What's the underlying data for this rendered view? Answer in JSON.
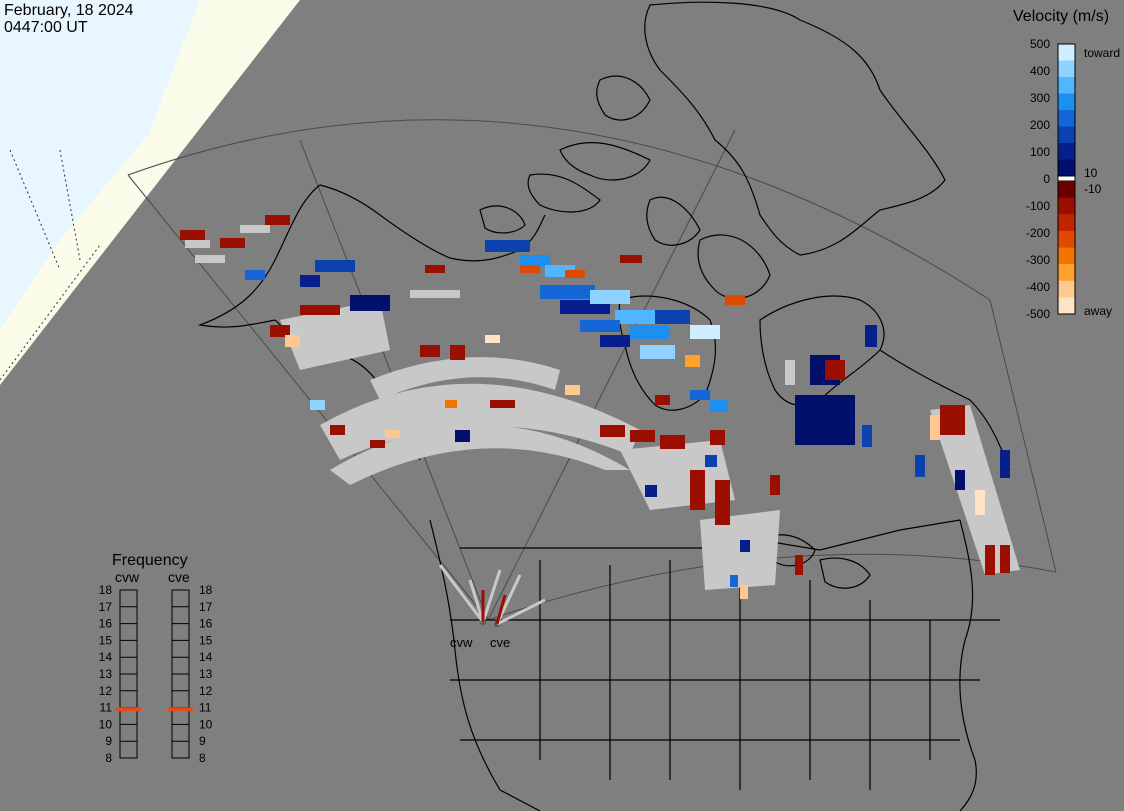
{
  "header": {
    "date": "February, 18 2024",
    "time": "0447:00 UT"
  },
  "velocity_scale": {
    "title": "Velocity (m/s)",
    "labels": [
      "500",
      "400",
      "300",
      "200",
      "100",
      "0",
      "-100",
      "-200",
      "-300",
      "-400",
      "-500"
    ],
    "side_labels": {
      "toward": "toward",
      "away": "away",
      "pos_small": "10",
      "neg_small": "-10"
    },
    "colors_toward": [
      "#cfeeff",
      "#8fd2ff",
      "#4fb6ff",
      "#1c8ff0",
      "#1466d6",
      "#0c42b0",
      "#071f8c",
      "#00106b"
    ],
    "colors_away": [
      "#6b0000",
      "#9b0f00",
      "#c22400",
      "#e04a00",
      "#f07400",
      "#ffa12c",
      "#ffc890",
      "#ffe3c6"
    ]
  },
  "frequency_panel": {
    "title": "Frequency",
    "columns": [
      "cvw",
      "cve"
    ],
    "ticks": [
      "18",
      "17",
      "16",
      "15",
      "14",
      "13",
      "12",
      "11",
      "10",
      "9",
      "8"
    ],
    "marker_value_mhz": 10.9,
    "marker_color": "#e84a1c"
  },
  "radar_sites": [
    "cvw",
    "cve"
  ],
  "background_colors": {
    "plot": "#7f7f7f",
    "sunlit_ice": "#e8f6ff",
    "twilight": "#fbfbea",
    "ground_scatter": "#c8c8c8"
  }
}
